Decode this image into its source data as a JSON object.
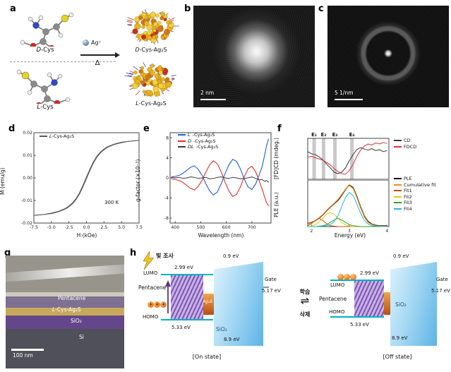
{
  "panel_a": {
    "label": "a",
    "reactant_top": {
      "prefix": "D",
      "name": "-Cys"
    },
    "reactant_bottom": {
      "prefix": "L",
      "name": "-Cys"
    },
    "reagent": "Ag⁺",
    "heat": "Δ",
    "product_top": {
      "prefix": "D",
      "name": "-Cys-Ag₂S"
    },
    "product_bottom": {
      "prefix": "L",
      "name": "-Cys-Ag₂S"
    }
  },
  "panel_b": {
    "label": "b",
    "scale_bar": "2 nm"
  },
  "panel_c": {
    "label": "c",
    "scale_bar": "5 1/nm"
  },
  "panel_d": {
    "label": "d",
    "legend": {
      "prefix": "L",
      "name": "-Cys-Ag₂S"
    },
    "annotation": "300 K"
  },
  "panel_e": {
    "label": "e",
    "legend": [
      {
        "prefix": "L",
        "label": "-Cys-Ag₂S",
        "color": "#1f5fd6"
      },
      {
        "prefix": "D",
        "label": "-Cys-Ag₂S",
        "color": "#e03131"
      },
      {
        "prefix": "DL",
        "label": "-Cys-Ag₂S",
        "color": "#3a3a3a"
      }
    ]
  },
  "panel_f": {
    "label": "f",
    "legend_top": [
      {
        "label": "CD",
        "color": "#3a3a3a"
      },
      {
        "label": "FDCD",
        "color": "#e03131"
      }
    ],
    "legend_bottom": [
      {
        "label": "PLE",
        "color": "#111111"
      },
      {
        "label": "Cumulative fit",
        "color": "#f08c1a"
      },
      {
        "label": "Fit1",
        "color": "#c8500a"
      },
      {
        "label": "Fit2",
        "color": "#e6c619"
      },
      {
        "label": "Fit3",
        "color": "#2fa32f"
      },
      {
        "label": "Fit4",
        "color": "#26b7d8"
      }
    ]
  },
  "panel_g": {
    "label": "g",
    "layer_pentacene": "Pentacene",
    "layer_ag2s": {
      "prefix": "L",
      "name": "-Cys-Ag₂S"
    },
    "layer_sio2": "SiO₂",
    "layer_si": "Si",
    "scale_bar": "100 nm"
  },
  "panel_h": {
    "label": "h",
    "light": "빛 조사",
    "learn": "학습",
    "erase": "삭제",
    "arrow": "⇌",
    "lumo": "LUMO",
    "homo": "HOMO",
    "pentacene": "Pentacene",
    "ag2s": "Ag₂S",
    "sio2": "SiO₂",
    "gate": "Gate",
    "e_lumo": "2.99 eV",
    "e_homo": "5.33 eV",
    "e_gate": "5.17 eV",
    "e_barrier_top": "0.9 eV",
    "e_gap": "8.9 eV",
    "hole_symbol": "+",
    "on_state": "[On state]",
    "off_state": "[Off state]"
  },
  "chart_data": [
    {
      "id": "chart_d",
      "type": "line",
      "xlabel": "H (kOe)",
      "ylabel": "M (emu/g)",
      "xlim": [
        -7.5,
        7.5
      ],
      "ylim": [
        -0.02,
        0.02
      ],
      "xticks": [
        "-7.5",
        "-5.0",
        "-2.5",
        "0.0",
        "2.5",
        "5.0",
        "7.5"
      ],
      "yticks": [
        "0.02",
        "0.01",
        "0.00",
        "-0.01",
        "-0.02"
      ],
      "series": [
        {
          "name": "L-Cys-Ag2S up-branch",
          "color": "#5a5a5a",
          "width": 1,
          "x": [
            -7.5,
            -6,
            -5,
            -4,
            -3,
            -2.5,
            -2,
            -1.5,
            -1,
            -0.5,
            0,
            0.5,
            1,
            1.5,
            2,
            2.5,
            3,
            4,
            5,
            6,
            7.5
          ],
          "y": [
            -0.0166,
            -0.0162,
            -0.0158,
            -0.015,
            -0.0138,
            -0.0128,
            -0.0115,
            -0.0097,
            -0.0072,
            -0.004,
            -0.0004,
            0.0033,
            0.0066,
            0.0092,
            0.0111,
            0.0124,
            0.0135,
            0.0148,
            0.0156,
            0.0162,
            0.0166
          ]
        },
        {
          "name": "L-Cys-Ag2S down-branch",
          "color": "#5a5a5a",
          "width": 1,
          "x": [
            -7.5,
            -6,
            -5,
            -4,
            -3,
            -2.5,
            -2,
            -1.5,
            -1,
            -0.5,
            0,
            0.5,
            1,
            1.5,
            2,
            2.5,
            3,
            4,
            5,
            6,
            7.5
          ],
          "y": [
            -0.0166,
            -0.0162,
            -0.0156,
            -0.0148,
            -0.0135,
            -0.0124,
            -0.0111,
            -0.0092,
            -0.0066,
            -0.0033,
            0.0004,
            0.004,
            0.0072,
            0.0097,
            0.0115,
            0.0128,
            0.0138,
            0.015,
            0.0158,
            0.0162,
            0.0166
          ]
        }
      ]
    },
    {
      "id": "chart_e",
      "type": "line",
      "xlabel": "Wavelength (nm)",
      "ylabel": "g-factor (×10⁻³)",
      "xlim": [
        380,
        775
      ],
      "ylim": [
        -9,
        9
      ],
      "xticks": [
        "400",
        "500",
        "600",
        "700"
      ],
      "yticks": [
        "8",
        "4",
        "0",
        "-4",
        "-8"
      ],
      "series": [
        {
          "name": "L-Cys-Ag2S",
          "color": "#1f5fd6",
          "width": 1.1,
          "x": [
            385,
            400,
            415,
            430,
            445,
            460,
            475,
            490,
            505,
            520,
            535,
            550,
            565,
            580,
            595,
            610,
            625,
            640,
            655,
            670,
            685,
            700,
            715,
            730,
            740,
            750,
            758,
            766
          ],
          "y": [
            0.2,
            0.3,
            0.5,
            0.9,
            1.5,
            2.1,
            2.4,
            1.7,
            0.5,
            -1.2,
            -2.6,
            -3.4,
            -2.8,
            -1.2,
            0.8,
            2.6,
            3.7,
            3.3,
            1.8,
            -0.2,
            -1.8,
            -2.3,
            -1.2,
            0.8,
            2.2,
            4.5,
            6.5,
            7.8
          ]
        },
        {
          "name": "D-Cys-Ag2S",
          "color": "#e03131",
          "width": 1.1,
          "x": [
            385,
            400,
            415,
            430,
            445,
            460,
            475,
            490,
            505,
            520,
            535,
            550,
            565,
            580,
            595,
            610,
            625,
            640,
            655,
            670,
            685,
            700,
            715,
            730,
            740,
            750,
            758,
            766
          ],
          "y": [
            -0.2,
            -0.3,
            -0.5,
            -0.9,
            -1.5,
            -2.1,
            -2.4,
            -1.7,
            -0.5,
            1.2,
            2.6,
            3.4,
            2.8,
            1.2,
            -0.8,
            -2.6,
            -3.7,
            -3.3,
            -1.8,
            0.2,
            1.8,
            2.3,
            1.2,
            -0.8,
            -2.2,
            -3.8,
            -5.0,
            -5.6
          ]
        },
        {
          "name": "DL-Cys-Ag2S",
          "color": "#3a3a3a",
          "width": 1,
          "x": [
            385,
            400,
            415,
            430,
            445,
            460,
            475,
            490,
            505,
            520,
            535,
            550,
            565,
            580,
            595,
            610,
            625,
            640,
            655,
            670,
            685,
            700,
            715,
            730,
            740,
            750,
            758,
            766
          ],
          "y": [
            0.1,
            0.0,
            0.1,
            -0.1,
            0.0,
            0.2,
            0.1,
            -0.1,
            0.0,
            0.1,
            -0.2,
            -0.1,
            0.1,
            0.2,
            0.0,
            -0.1,
            0.1,
            0.0,
            -0.2,
            -0.1,
            0.0,
            0.2,
            -0.1,
            -0.4,
            -0.3,
            -0.7,
            -0.5,
            -0.9
          ]
        }
      ]
    },
    {
      "id": "chart_f_top",
      "type": "line",
      "xlabel": "",
      "ylabel": "[FD]CD (mdeg.)",
      "xlim": [
        1.9,
        4.05
      ],
      "ylim": [
        -2,
        2
      ],
      "xticks": [],
      "yticks": [],
      "vbands": [
        {
          "x": 2.07,
          "label": "E₁"
        },
        {
          "x": 2.32,
          "label": "E₂"
        },
        {
          "x": 2.62,
          "label": "E₃"
        },
        {
          "x": 3.07,
          "label": "E₄"
        }
      ],
      "series": [
        {
          "name": "CD",
          "color": "#3a3a3a",
          "width": 1,
          "x": [
            1.9,
            2.0,
            2.1,
            2.2,
            2.3,
            2.4,
            2.5,
            2.6,
            2.7,
            2.8,
            2.9,
            3.0,
            3.1,
            3.2,
            3.3,
            3.4,
            3.5,
            3.6,
            3.7,
            3.8,
            3.9,
            4.0
          ],
          "y": [
            0.7,
            0.5,
            0.4,
            0.2,
            -0.1,
            -0.5,
            -0.9,
            -1.3,
            -1.45,
            -1.3,
            -0.9,
            -0.2,
            0.4,
            0.9,
            1.1,
            0.95,
            0.85,
            1.0,
            0.8,
            0.9,
            0.7,
            0.8
          ]
        },
        {
          "name": "FDCD",
          "color": "#e03131",
          "width": 1,
          "x": [
            1.9,
            2.0,
            2.1,
            2.2,
            2.3,
            2.4,
            2.5,
            2.6,
            2.7,
            2.8,
            2.9,
            3.0,
            3.1,
            3.2,
            3.3,
            3.4,
            3.5,
            3.6,
            3.7,
            3.8,
            3.9,
            4.0
          ],
          "y": [
            0.15,
            0.25,
            0.1,
            0.0,
            -0.15,
            -0.35,
            -0.6,
            -0.95,
            -1.25,
            -1.45,
            -1.5,
            -1.15,
            -0.55,
            0.25,
            0.85,
            1.25,
            1.45,
            1.35,
            1.55,
            1.45,
            1.6,
            1.5
          ]
        }
      ]
    },
    {
      "id": "chart_f_bottom",
      "type": "line",
      "xlabel": "Energy (eV)",
      "ylabel": "PLE (a.u.)",
      "xlim": [
        1.9,
        4.05
      ],
      "ylim": [
        0,
        1.12
      ],
      "xticks": [
        "2",
        "3",
        "4"
      ],
      "yticks": [],
      "series": [
        {
          "name": "PLE",
          "color": "#111111",
          "width": 1.4,
          "x": [
            1.9,
            2.0,
            2.1,
            2.2,
            2.3,
            2.4,
            2.5,
            2.6,
            2.7,
            2.8,
            2.9,
            3.0,
            3.1,
            3.2,
            3.3,
            3.4,
            3.5,
            3.6,
            3.7,
            3.8,
            3.9,
            4.0
          ],
          "y": [
            0.07,
            0.1,
            0.14,
            0.2,
            0.28,
            0.38,
            0.47,
            0.55,
            0.63,
            0.75,
            0.89,
            1.0,
            0.94,
            0.73,
            0.47,
            0.25,
            0.12,
            0.06,
            0.03,
            0.02,
            0.02,
            0.02
          ]
        },
        {
          "name": "Cumulative fit",
          "color": "#f08c1a",
          "width": 1.2,
          "x": [
            1.9,
            2.0,
            2.1,
            2.2,
            2.3,
            2.4,
            2.5,
            2.6,
            2.7,
            2.8,
            2.9,
            3.0,
            3.1,
            3.2,
            3.3,
            3.4,
            3.5,
            3.6,
            3.7,
            3.8,
            3.9,
            4.0
          ],
          "y": [
            0.06,
            0.09,
            0.14,
            0.21,
            0.29,
            0.39,
            0.48,
            0.56,
            0.65,
            0.77,
            0.9,
            0.99,
            0.92,
            0.71,
            0.45,
            0.23,
            0.1,
            0.05,
            0.02,
            0.01,
            0.01,
            0.01
          ]
        },
        {
          "name": "Fit1",
          "color": "#c8500a",
          "width": 1,
          "x": [
            1.9,
            2.0,
            2.1,
            2.2,
            2.3,
            2.4,
            2.5,
            2.6,
            2.7,
            2.8,
            2.9,
            3.0,
            3.1,
            3.2,
            3.3,
            3.4,
            3.5,
            3.6,
            3.7,
            3.8,
            3.9,
            4.0
          ],
          "y": [
            0.02,
            0.07,
            0.15,
            0.2,
            0.15,
            0.07,
            0.02,
            0.01,
            0,
            0,
            0,
            0,
            0,
            0,
            0,
            0,
            0,
            0,
            0,
            0,
            0,
            0
          ]
        },
        {
          "name": "Fit2",
          "color": "#e6c619",
          "width": 1,
          "x": [
            1.9,
            2.0,
            2.1,
            2.2,
            2.3,
            2.4,
            2.5,
            2.6,
            2.7,
            2.8,
            2.9,
            3.0,
            3.1,
            3.2,
            3.3,
            3.4,
            3.5,
            3.6,
            3.7,
            3.8,
            3.9,
            4.0
          ],
          "y": [
            0,
            0.01,
            0.04,
            0.1,
            0.2,
            0.3,
            0.34,
            0.3,
            0.2,
            0.1,
            0.04,
            0.01,
            0,
            0,
            0,
            0,
            0,
            0,
            0,
            0,
            0,
            0
          ]
        },
        {
          "name": "Fit3",
          "color": "#2fa32f",
          "width": 1,
          "x": [
            1.9,
            2.0,
            2.1,
            2.2,
            2.3,
            2.4,
            2.5,
            2.6,
            2.7,
            2.8,
            2.9,
            3.0,
            3.1,
            3.2,
            3.3,
            3.4,
            3.5,
            3.6,
            3.7,
            3.8,
            3.9,
            4.0
          ],
          "y": [
            0,
            0,
            0,
            0.01,
            0.02,
            0.05,
            0.1,
            0.16,
            0.2,
            0.16,
            0.1,
            0.05,
            0.02,
            0.01,
            0,
            0,
            0,
            0,
            0,
            0,
            0,
            0
          ]
        },
        {
          "name": "Fit4",
          "color": "#26b7d8",
          "width": 1,
          "x": [
            1.9,
            2.0,
            2.1,
            2.2,
            2.3,
            2.4,
            2.5,
            2.6,
            2.7,
            2.8,
            2.9,
            3.0,
            3.1,
            3.2,
            3.3,
            3.4,
            3.5,
            3.6,
            3.7,
            3.8,
            3.9,
            4.0
          ],
          "y": [
            0,
            0,
            0,
            0,
            0.01,
            0.02,
            0.05,
            0.12,
            0.26,
            0.48,
            0.7,
            0.82,
            0.75,
            0.55,
            0.32,
            0.15,
            0.06,
            0.02,
            0.01,
            0,
            0,
            0
          ]
        }
      ]
    }
  ]
}
